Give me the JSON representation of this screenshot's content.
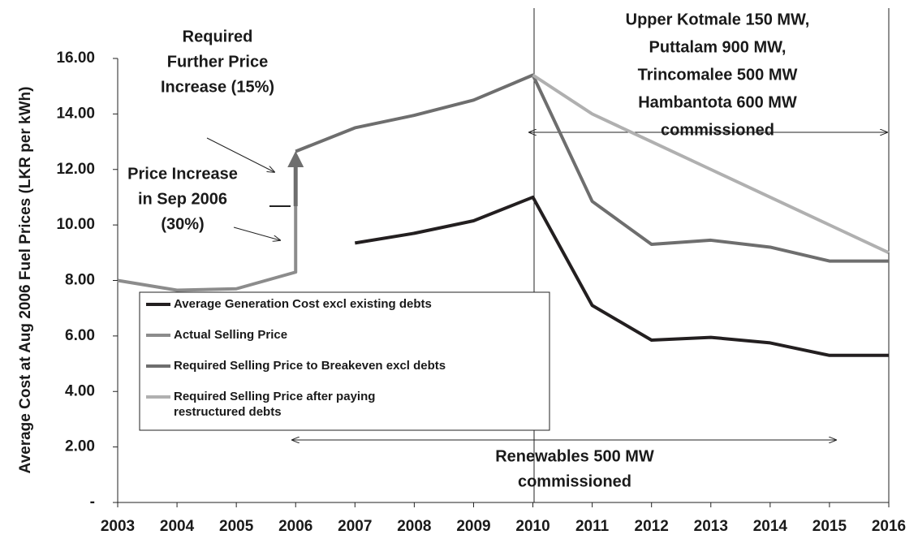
{
  "chart_data": {
    "type": "line",
    "ylabel": "Average Cost at Aug 2006 Fuel Prices (LKR per kWh)",
    "xlim": [
      2003,
      2016
    ],
    "xticks": [
      2003,
      2004,
      2005,
      2006,
      2007,
      2008,
      2009,
      2010,
      2011,
      2012,
      2013,
      2014,
      2015,
      2016
    ],
    "ylim": [
      0,
      16
    ],
    "yticks": [
      {
        "value": 0,
        "label": "-"
      },
      {
        "value": 2,
        "label": "2.00"
      },
      {
        "value": 4,
        "label": "4.00"
      },
      {
        "value": 6,
        "label": "6.00"
      },
      {
        "value": 8,
        "label": "8.00"
      },
      {
        "value": 10,
        "label": "10.00"
      },
      {
        "value": 12,
        "label": "12.00"
      },
      {
        "value": 14,
        "label": "14.00"
      },
      {
        "value": 16,
        "label": "16.00"
      }
    ],
    "series": [
      {
        "name": "Average Generation Cost excl existing debts",
        "color": "#231f20",
        "x": [
          2007,
          2008,
          2009,
          2010,
          2011,
          2012,
          2013,
          2014,
          2015,
          2016
        ],
        "values": [
          9.35,
          9.7,
          10.15,
          11.0,
          7.1,
          5.85,
          5.95,
          5.75,
          5.3,
          5.3
        ]
      },
      {
        "name": "Actual Selling Price",
        "color": "#8c8c8c",
        "x": [
          2003,
          2004,
          2005,
          2006,
          2006
        ],
        "values": [
          8.0,
          7.65,
          7.7,
          8.3,
          10.7
        ]
      },
      {
        "name": "Required Selling Price to Breakeven excl debts",
        "color": "#6e6e6e",
        "x": [
          2006,
          2007,
          2008,
          2009,
          2010,
          2011,
          2012,
          2013,
          2014,
          2015,
          2016
        ],
        "values": [
          12.65,
          13.5,
          13.95,
          14.5,
          15.4,
          10.85,
          9.3,
          9.45,
          9.2,
          8.7,
          8.7
        ]
      },
      {
        "name": "Required Selling Price after paying restructured debts",
        "color": "#b0b0b0",
        "x": [
          2010,
          2011,
          2012,
          2013,
          2014,
          2015,
          2016
        ],
        "values": [
          15.4,
          14.0,
          13.0,
          12.0,
          11.0,
          10.0,
          9.0
        ]
      }
    ],
    "annotations": [
      {
        "lines": [
          "Required",
          "Further Price",
          "Increase (15%)"
        ]
      },
      {
        "lines": [
          "Price Increase",
          "in Sep 2006",
          "(30%)"
        ]
      },
      {
        "lines": [
          "Upper Kotmale 150 MW,",
          "Puttalam 900 MW,",
          "Trincomalee 500 MW",
          "Hambantota 600 MW",
          "commissioned"
        ]
      },
      {
        "lines": [
          "Renewables 500 MW",
          "commissioned"
        ]
      }
    ]
  }
}
